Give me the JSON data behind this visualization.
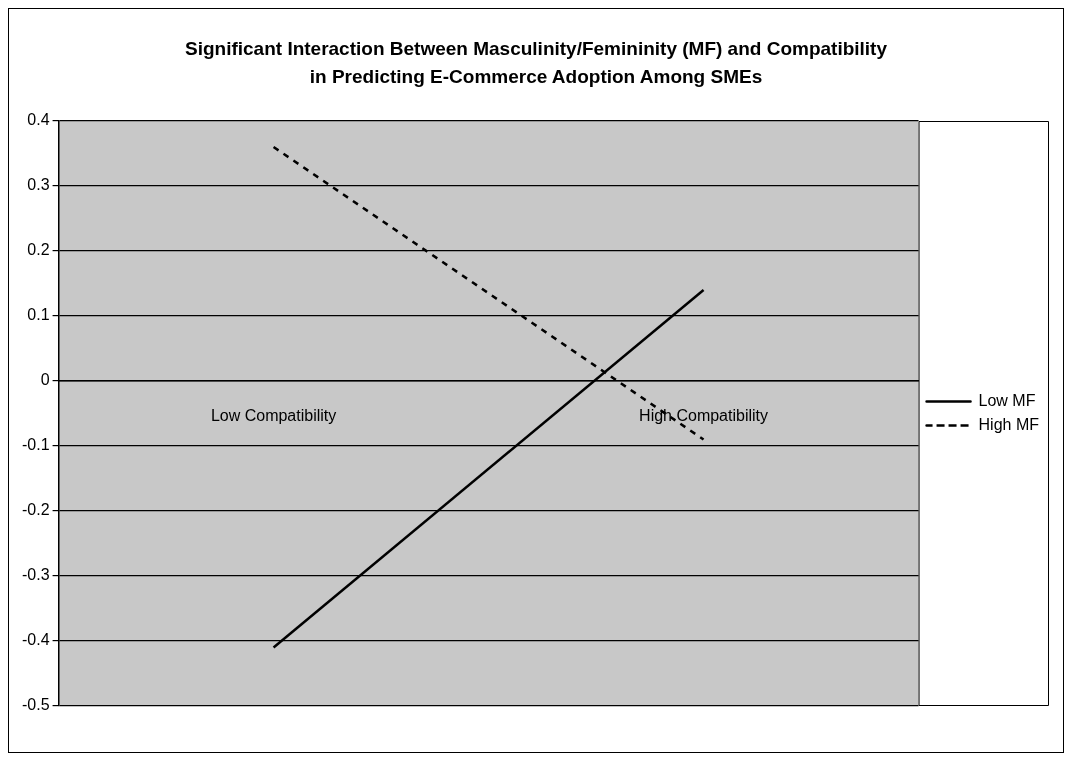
{
  "chart_data": {
    "type": "line",
    "title": "Significant Interaction Between Masculinity/Femininity (MF) and Compatibility in Predicting E-Commerce Adoption Among SMEs",
    "categories": [
      "Low Compatibility",
      "High Compatibility"
    ],
    "series": [
      {
        "name": "Low MF",
        "color": "#000000",
        "values": [
          -0.41,
          0.14
        ],
        "line_style": "solid"
      },
      {
        "name": "High MF",
        "color": "#000000",
        "values": [
          0.36,
          -0.09
        ],
        "line_style": "dashed"
      }
    ],
    "ylim": [
      -0.5,
      0.4
    ],
    "yticks": [
      -0.5,
      -0.4,
      -0.3,
      -0.2,
      -0.1,
      0,
      0.1,
      0.2,
      0.3,
      0.4
    ],
    "grid": "y",
    "legend": "right",
    "marker": "none"
  }
}
